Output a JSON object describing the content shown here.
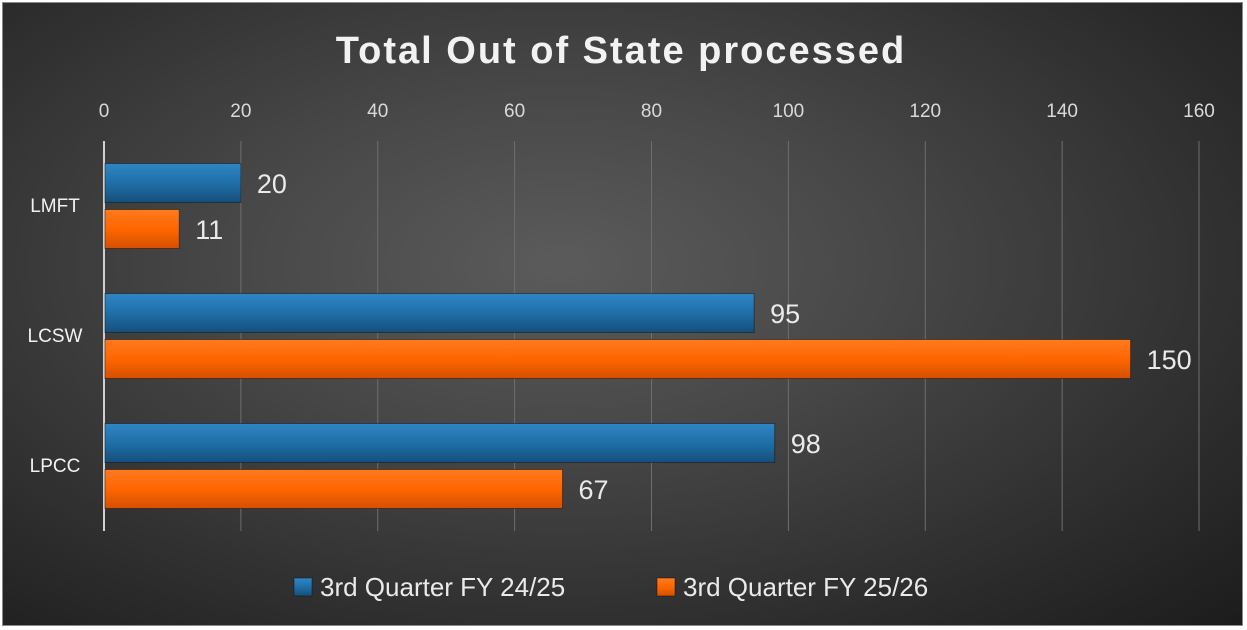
{
  "chart_data": {
    "type": "bar",
    "orientation": "horizontal",
    "title": "Total Out of State processed",
    "categories": [
      "LMFT",
      "LCSW",
      "LPCC"
    ],
    "series": [
      {
        "name": "3rd Quarter FY 24/25",
        "values": [
          20,
          95,
          98
        ],
        "color": "#1f6fa8"
      },
      {
        "name": "3rd Quarter FY 25/26",
        "values": [
          11,
          150,
          67
        ],
        "color": "#ff6600"
      }
    ],
    "xlim": [
      0,
      160
    ],
    "x_ticks": [
      0,
      20,
      40,
      60,
      80,
      100,
      120,
      140,
      160
    ],
    "x_axis_position": "top",
    "grid": true,
    "legend": "bottom",
    "data_labels": true
  }
}
